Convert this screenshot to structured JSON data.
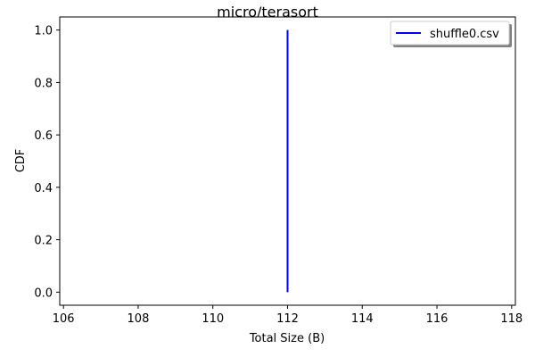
{
  "chart_data": {
    "type": "line",
    "title": "micro/terasort",
    "xlabel": "Total Size (B)",
    "ylabel": "CDF",
    "xlim": [
      105.9,
      118.1
    ],
    "ylim": [
      -0.05,
      1.05
    ],
    "xticks": [
      106,
      108,
      110,
      112,
      114,
      116,
      118
    ],
    "yticks": [
      0.0,
      0.2,
      0.4,
      0.6,
      0.8,
      1.0
    ],
    "xtick_labels": [
      "106",
      "108",
      "110",
      "112",
      "114",
      "116",
      "118"
    ],
    "ytick_labels": [
      "0.0",
      "0.2",
      "0.4",
      "0.6",
      "0.8",
      "1.0"
    ],
    "grid": false,
    "legend_position": "top-right",
    "series": [
      {
        "name": "shuffle0.csv",
        "color": "#0000ff",
        "x": [
          112,
          112
        ],
        "y": [
          0.0,
          1.0
        ]
      }
    ]
  }
}
